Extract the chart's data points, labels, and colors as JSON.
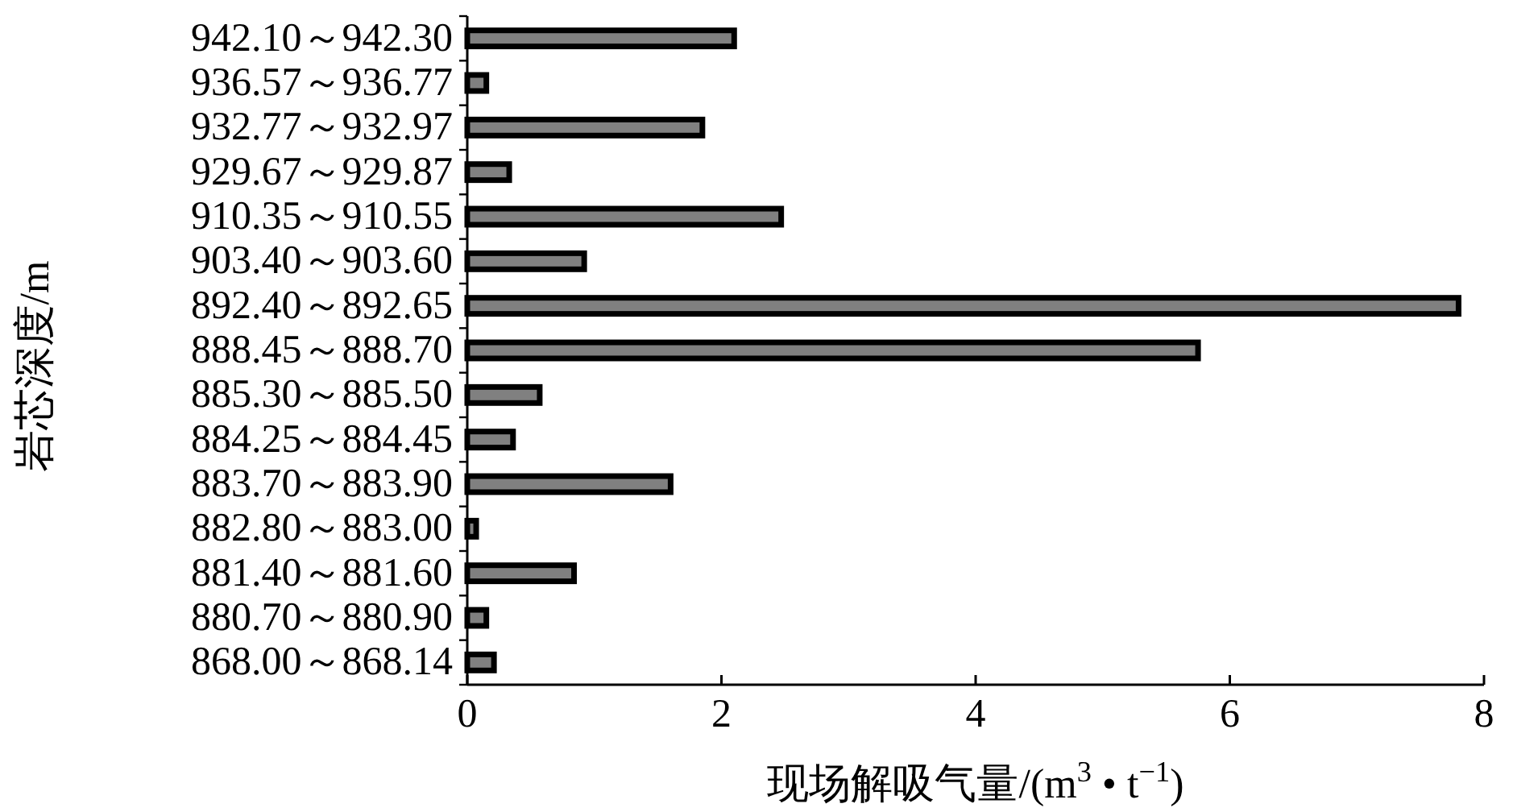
{
  "chart_data": {
    "type": "bar",
    "orientation": "horizontal",
    "categories": [
      "942.10～942.30",
      "936.57～936.77",
      "932.77～932.97",
      "929.67～929.87",
      "910.35～910.55",
      "903.40～903.60",
      "892.40～892.65",
      "888.45～888.70",
      "885.30～885.50",
      "884.25～884.45",
      "883.70～883.90",
      "882.80～883.00",
      "881.40～881.60",
      "880.70～880.90",
      "868.00～868.14"
    ],
    "values": [
      2.1,
      0.15,
      1.85,
      0.33,
      2.47,
      0.92,
      7.8,
      5.75,
      0.57,
      0.36,
      1.6,
      0.07,
      0.84,
      0.15,
      0.21
    ],
    "color": "#808080",
    "xlim": [
      0,
      8
    ],
    "xticks": [
      0,
      2,
      4,
      6,
      8
    ],
    "xlabel": "现场解吸气量/(m$^{3}$ • t$^{−1}$)",
    "ylabel": "岩芯深度/m",
    "grid": false
  }
}
